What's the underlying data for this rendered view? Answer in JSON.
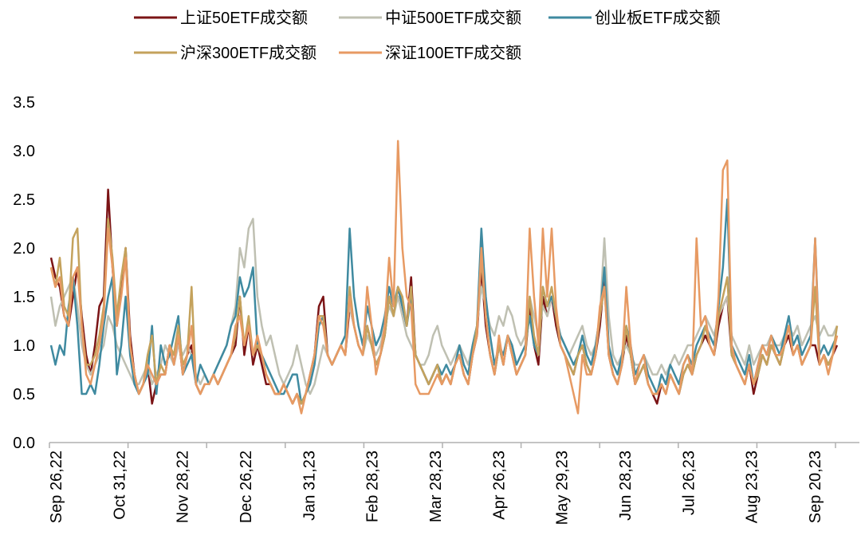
{
  "chart_data": {
    "type": "line",
    "title": "",
    "xlabel": "",
    "ylabel": "",
    "ylim": [
      0,
      3.5
    ],
    "yticks": [
      "0.0",
      "0.5",
      "1.0",
      "1.5",
      "2.0",
      "2.5",
      "3.0",
      "3.5"
    ],
    "xticks": [
      "Sep 26,22",
      "Oct 31,22",
      "Nov 28,22",
      "Dec 26,22",
      "Jan 31,23",
      "Feb 28,23",
      "Mar 28,23",
      "Apr 26,23",
      "May 29,23",
      "Jun 28,23",
      "Jul 26,23",
      "Aug 23,23",
      "Sep 20,23"
    ],
    "grid": false,
    "legend": "top",
    "series": [
      {
        "name": "上证50ETF成交额",
        "color": "#7b1416",
        "values": [
          1.9,
          1.7,
          1.6,
          1.3,
          1.2,
          1.5,
          1.8,
          1.3,
          0.9,
          0.7,
          1.0,
          1.4,
          1.5,
          2.6,
          1.8,
          1.2,
          1.6,
          2.0,
          1.1,
          0.7,
          0.5,
          0.6,
          0.8,
          0.4,
          0.6,
          0.7,
          0.7,
          1.0,
          0.8,
          1.1,
          0.7,
          0.9,
          1.0,
          0.6,
          0.5,
          0.6,
          0.6,
          0.7,
          0.6,
          0.7,
          0.8,
          0.9,
          1.0,
          1.5,
          0.9,
          1.2,
          0.8,
          1.0,
          0.8,
          0.6,
          0.6,
          0.5,
          0.5,
          0.6,
          0.5,
          0.4,
          0.5,
          0.4,
          0.5,
          0.7,
          0.9,
          1.4,
          1.5,
          0.9,
          0.8,
          0.9,
          1.0,
          0.9,
          1.4,
          1.2,
          1.0,
          0.9,
          1.2,
          1.0,
          0.8,
          0.9,
          1.1,
          1.5,
          1.3,
          1.6,
          1.4,
          1.2,
          1.7,
          0.9,
          0.8,
          0.7,
          0.6,
          0.7,
          0.8,
          0.6,
          0.7,
          0.6,
          0.8,
          0.9,
          0.7,
          0.6,
          0.9,
          1.1,
          1.8,
          1.2,
          0.9,
          0.7,
          1.0,
          0.8,
          1.1,
          0.9,
          0.7,
          0.8,
          0.9,
          1.4,
          1.0,
          0.8,
          1.5,
          1.3,
          1.5,
          1.2,
          1.0,
          0.9,
          0.8,
          0.7,
          0.9,
          1.0,
          0.8,
          0.7,
          0.9,
          1.2,
          1.7,
          0.9,
          0.7,
          0.6,
          0.8,
          1.1,
          0.9,
          0.6,
          0.7,
          0.8,
          0.6,
          0.5,
          0.4,
          0.6,
          0.5,
          0.7,
          0.6,
          0.5,
          0.7,
          0.8,
          0.7,
          0.9,
          1.0,
          1.1,
          1.0,
          0.9,
          1.2,
          1.4,
          1.5,
          0.9,
          0.8,
          0.7,
          0.6,
          0.8,
          0.5,
          0.7,
          0.9,
          0.8,
          1.0,
          0.9,
          0.8,
          1.0,
          1.1,
          0.9,
          1.0,
          0.8,
          0.9,
          1.0,
          1.0,
          0.8,
          0.9,
          0.8,
          0.9,
          1.0
        ]
      },
      {
        "name": "中证500ETF成交额",
        "color": "#bfc0b2",
        "values": [
          1.5,
          1.2,
          1.4,
          1.5,
          1.6,
          1.7,
          1.4,
          1.0,
          0.8,
          0.7,
          0.8,
          0.9,
          1.0,
          1.3,
          1.2,
          1.0,
          0.9,
          0.8,
          0.7,
          0.6,
          0.6,
          0.7,
          0.8,
          0.6,
          0.7,
          0.8,
          1.0,
          0.9,
          0.8,
          1.0,
          0.9,
          1.0,
          0.9,
          0.7,
          0.6,
          0.7,
          0.6,
          0.7,
          0.8,
          0.9,
          1.0,
          1.2,
          1.4,
          2.0,
          1.8,
          2.2,
          2.3,
          1.5,
          1.2,
          1.0,
          1.1,
          0.9,
          0.7,
          0.6,
          0.7,
          0.8,
          1.0,
          0.8,
          0.6,
          0.5,
          0.6,
          0.8,
          1.0,
          0.9,
          0.8,
          0.9,
          1.0,
          1.1,
          1.4,
          1.2,
          1.0,
          0.9,
          1.1,
          1.0,
          0.9,
          1.0,
          1.2,
          1.4,
          1.3,
          1.5,
          1.3,
          1.1,
          1.0,
          0.9,
          0.8,
          0.8,
          0.9,
          1.1,
          1.2,
          1.0,
          0.9,
          0.8,
          0.9,
          1.0,
          0.9,
          0.8,
          1.0,
          1.2,
          1.6,
          1.4,
          1.2,
          1.1,
          1.3,
          1.2,
          1.4,
          1.3,
          1.1,
          1.0,
          1.1,
          1.5,
          1.3,
          1.1,
          1.4,
          1.3,
          1.5,
          1.3,
          1.1,
          1.0,
          0.9,
          1.0,
          1.1,
          1.2,
          1.0,
          0.9,
          1.0,
          1.3,
          2.1,
          1.3,
          0.9,
          0.8,
          0.9,
          1.0,
          0.9,
          0.8,
          0.8,
          0.9,
          0.8,
          0.7,
          0.7,
          0.8,
          0.7,
          0.8,
          0.9,
          0.8,
          0.9,
          1.0,
          1.0,
          1.1,
          1.2,
          1.3,
          1.2,
          1.1,
          1.3,
          1.4,
          1.5,
          1.1,
          1.0,
          0.9,
          0.8,
          1.0,
          0.8,
          0.9,
          1.0,
          1.0,
          1.1,
          1.0,
          1.0,
          1.1,
          1.2,
          1.1,
          1.2,
          1.0,
          1.1,
          1.2,
          1.3,
          1.1,
          1.2,
          1.1,
          1.1,
          1.2
        ]
      },
      {
        "name": "创业板ETF成交额",
        "color": "#3f8aa0",
        "values": [
          1.0,
          0.8,
          1.0,
          0.9,
          1.4,
          1.7,
          1.2,
          0.5,
          0.5,
          0.6,
          0.5,
          0.8,
          1.2,
          1.5,
          1.7,
          0.7,
          1.0,
          1.5,
          0.9,
          0.6,
          0.5,
          0.6,
          0.7,
          1.2,
          0.5,
          1.0,
          0.8,
          0.9,
          1.1,
          1.3,
          0.7,
          0.8,
          0.9,
          0.6,
          0.8,
          0.7,
          0.6,
          0.7,
          0.8,
          0.9,
          1.0,
          1.2,
          1.3,
          1.7,
          1.5,
          1.6,
          1.8,
          1.0,
          0.9,
          0.8,
          0.7,
          0.6,
          0.5,
          0.5,
          0.6,
          0.7,
          0.7,
          0.4,
          0.5,
          0.6,
          0.8,
          1.2,
          1.3,
          0.9,
          0.8,
          0.9,
          1.0,
          1.1,
          2.2,
          1.5,
          1.2,
          1.0,
          1.4,
          1.2,
          1.0,
          1.1,
          1.3,
          1.6,
          1.4,
          1.6,
          1.4,
          1.2,
          1.5,
          0.9,
          0.8,
          0.7,
          0.6,
          0.7,
          0.8,
          0.7,
          0.8,
          0.7,
          0.8,
          1.0,
          0.8,
          0.7,
          1.0,
          1.2,
          2.2,
          1.5,
          1.1,
          0.8,
          1.0,
          0.9,
          1.1,
          1.0,
          0.8,
          0.9,
          1.0,
          1.3,
          1.0,
          0.9,
          1.6,
          1.4,
          1.5,
          1.3,
          1.1,
          1.0,
          0.9,
          0.8,
          0.9,
          1.1,
          0.9,
          0.8,
          1.0,
          1.3,
          1.8,
          1.0,
          0.8,
          0.7,
          0.9,
          1.2,
          1.0,
          0.7,
          0.8,
          0.9,
          0.7,
          0.6,
          0.5,
          0.7,
          0.6,
          0.8,
          0.7,
          0.6,
          0.8,
          0.9,
          0.8,
          1.0,
          1.1,
          1.2,
          1.1,
          1.0,
          1.4,
          1.8,
          2.5,
          1.0,
          0.9,
          0.8,
          0.7,
          0.9,
          0.6,
          0.8,
          1.0,
          0.9,
          1.1,
          1.0,
          0.9,
          1.1,
          1.3,
          1.0,
          1.1,
          0.9,
          1.0,
          1.1,
          2.1,
          0.9,
          1.0,
          0.9,
          1.0,
          1.1
        ]
      },
      {
        "name": "沪深300ETF成交额",
        "color": "#c4a25c",
        "values": [
          1.8,
          1.6,
          1.9,
          1.4,
          1.3,
          2.1,
          2.2,
          1.2,
          0.8,
          0.8,
          0.9,
          1.1,
          1.4,
          2.3,
          1.9,
          1.3,
          1.7,
          2.0,
          1.0,
          0.7,
          0.5,
          0.6,
          0.9,
          1.1,
          0.6,
          0.8,
          0.7,
          1.0,
          0.9,
          1.2,
          0.8,
          0.9,
          1.6,
          0.6,
          0.5,
          0.6,
          0.6,
          0.7,
          0.6,
          0.7,
          0.8,
          0.9,
          1.1,
          1.5,
          1.0,
          1.3,
          0.9,
          1.0,
          0.9,
          0.7,
          0.6,
          0.5,
          0.5,
          0.6,
          0.5,
          0.4,
          0.5,
          0.4,
          0.5,
          0.7,
          0.9,
          1.3,
          1.3,
          0.9,
          0.8,
          0.9,
          1.0,
          0.9,
          1.6,
          1.2,
          1.0,
          0.9,
          1.2,
          1.0,
          0.8,
          0.9,
          1.1,
          1.5,
          1.3,
          1.6,
          1.5,
          1.2,
          1.6,
          0.9,
          0.8,
          0.7,
          0.6,
          0.7,
          0.8,
          0.6,
          0.7,
          0.6,
          0.8,
          0.9,
          0.7,
          0.6,
          0.9,
          1.2,
          1.9,
          1.3,
          0.9,
          0.7,
          1.0,
          0.8,
          1.1,
          0.9,
          0.7,
          0.8,
          0.9,
          1.5,
          1.1,
          0.9,
          1.6,
          1.4,
          1.6,
          1.3,
          1.0,
          0.9,
          0.8,
          0.7,
          0.9,
          1.0,
          0.8,
          0.7,
          0.9,
          1.3,
          1.6,
          0.9,
          0.7,
          0.6,
          0.8,
          1.2,
          0.9,
          0.6,
          0.7,
          0.8,
          0.6,
          0.5,
          0.5,
          0.6,
          0.5,
          0.7,
          0.6,
          0.5,
          0.7,
          0.8,
          0.7,
          0.9,
          1.0,
          1.2,
          1.0,
          0.9,
          1.3,
          1.5,
          1.7,
          0.9,
          0.8,
          0.7,
          0.6,
          0.8,
          0.6,
          0.7,
          0.9,
          0.8,
          1.0,
          0.9,
          0.8,
          1.0,
          1.2,
          0.9,
          1.0,
          0.8,
          0.9,
          1.0,
          1.6,
          0.8,
          0.9,
          0.8,
          0.9,
          1.2
        ]
      },
      {
        "name": "深证100ETF成交额",
        "color": "#e79a63",
        "values": [
          1.8,
          1.6,
          1.7,
          1.3,
          1.2,
          1.7,
          1.8,
          1.2,
          0.7,
          0.6,
          0.8,
          1.0,
          1.3,
          2.2,
          1.8,
          1.2,
          1.5,
          1.9,
          1.0,
          0.7,
          0.5,
          0.6,
          0.8,
          0.7,
          0.6,
          0.7,
          0.7,
          1.0,
          0.8,
          1.1,
          0.7,
          0.9,
          1.2,
          0.6,
          0.5,
          0.6,
          0.6,
          0.7,
          0.6,
          0.7,
          0.8,
          0.9,
          1.2,
          1.3,
          1.0,
          1.2,
          0.9,
          1.1,
          0.9,
          0.7,
          0.6,
          0.5,
          0.5,
          0.6,
          0.5,
          0.4,
          0.5,
          0.3,
          0.5,
          0.7,
          0.9,
          1.3,
          1.2,
          0.9,
          0.8,
          0.9,
          1.0,
          0.9,
          1.5,
          1.2,
          1.0,
          0.9,
          1.6,
          1.2,
          0.7,
          0.9,
          1.2,
          1.9,
          1.4,
          3.1,
          2.0,
          1.5,
          1.4,
          0.6,
          0.5,
          0.5,
          0.5,
          0.6,
          0.7,
          0.6,
          0.7,
          0.6,
          0.8,
          0.9,
          0.7,
          0.6,
          0.9,
          1.1,
          2.0,
          1.3,
          0.9,
          0.7,
          1.1,
          0.8,
          1.1,
          0.9,
          0.7,
          0.8,
          0.9,
          2.2,
          1.5,
          1.0,
          2.2,
          1.5,
          2.2,
          1.4,
          1.0,
          0.9,
          0.7,
          0.5,
          0.3,
          0.9,
          0.7,
          0.7,
          0.9,
          1.4,
          1.6,
          0.9,
          0.7,
          0.6,
          0.8,
          1.6,
          1.0,
          0.6,
          0.8,
          0.9,
          0.6,
          0.5,
          0.5,
          0.6,
          0.5,
          0.7,
          0.6,
          0.5,
          0.8,
          0.9,
          0.7,
          2.1,
          1.2,
          1.3,
          1.0,
          0.9,
          1.5,
          2.8,
          2.9,
          1.0,
          0.8,
          0.7,
          0.6,
          0.8,
          0.6,
          0.8,
          1.0,
          0.9,
          1.1,
          0.9,
          0.9,
          1.0,
          1.2,
          0.9,
          1.0,
          0.8,
          0.9,
          1.0,
          2.1,
          0.8,
          0.9,
          0.7,
          0.9,
          1.1
        ]
      }
    ]
  }
}
